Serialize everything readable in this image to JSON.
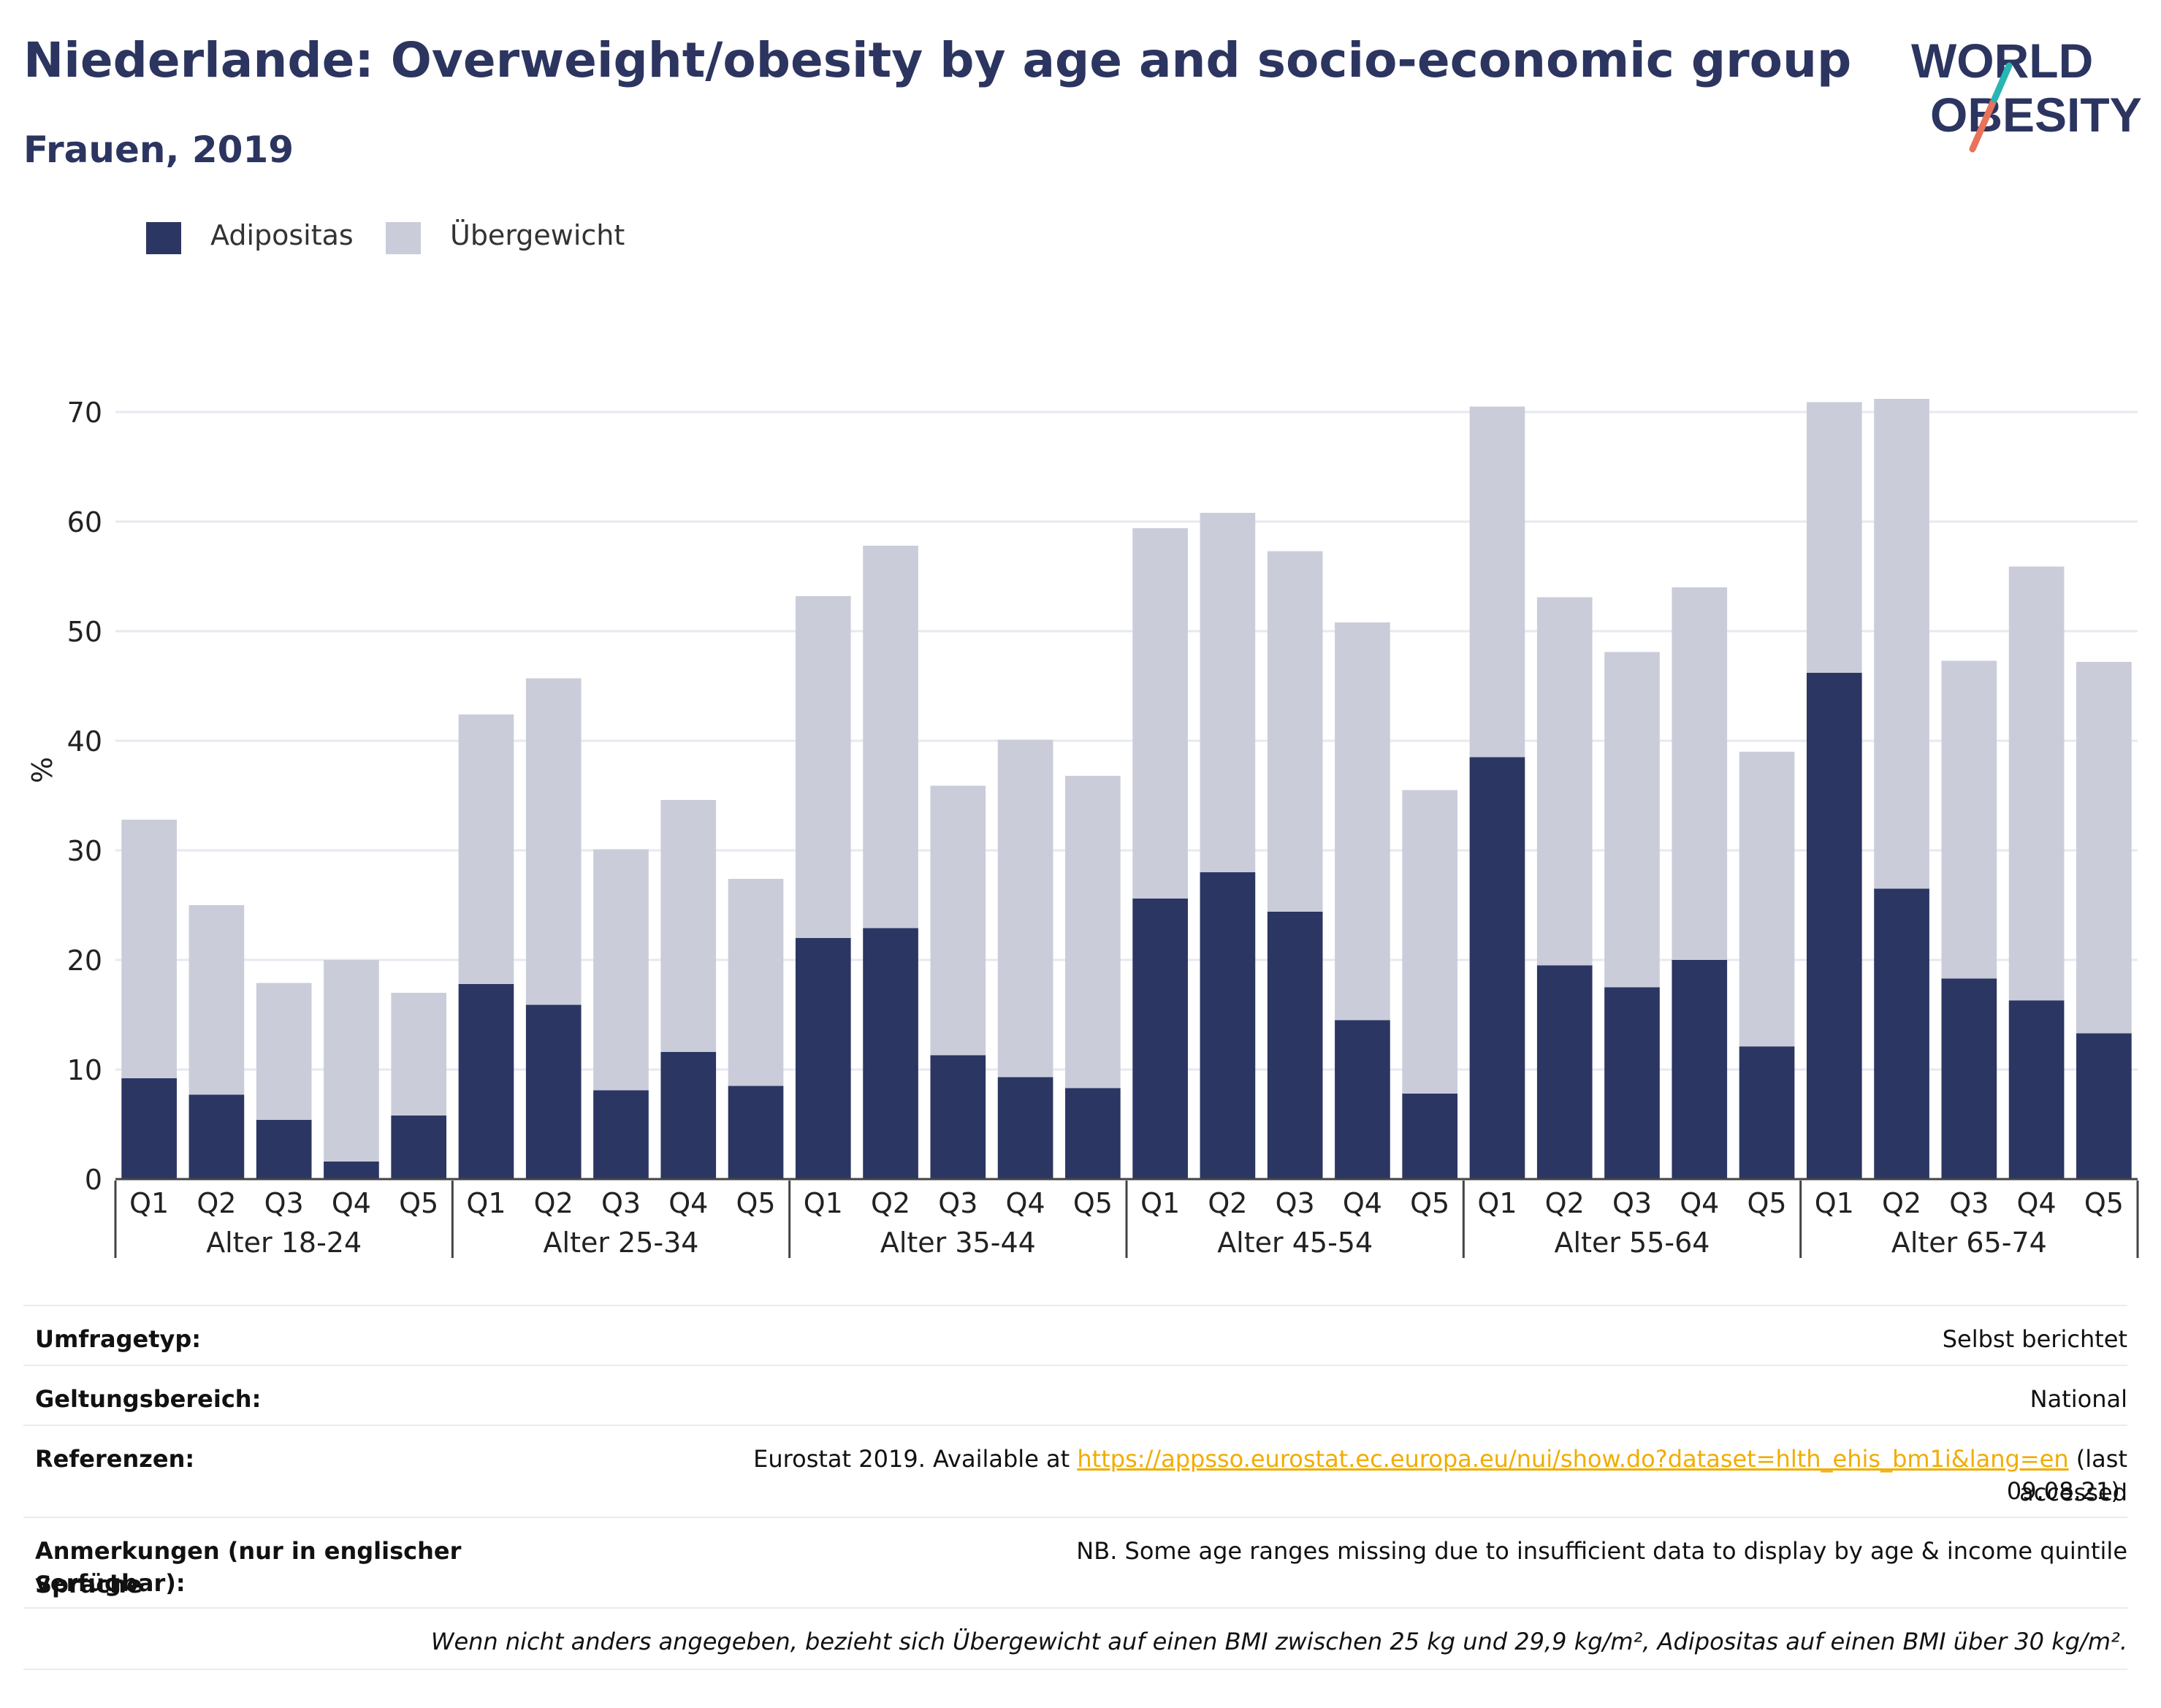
{
  "header": {
    "title": "Niederlande: Overweight/obesity by age and socio-economic group",
    "subtitle": "Frauen, 2019",
    "logo_text_1": "WORLD",
    "logo_text_2": "OBESITY"
  },
  "legend": {
    "obesity": "Adipositas",
    "overweight": "Übergewicht"
  },
  "colors": {
    "obesity": "#2b3663",
    "overweight": "#cacdd9",
    "grid": "#e6e9f0",
    "text": "#2c3560",
    "link": "#f0ad00",
    "logo_teal": "#2ab5b5",
    "logo_coral": "#e8725a"
  },
  "chart_data": {
    "type": "bar",
    "stacked": true,
    "ylabel": "%",
    "ylim": [
      0,
      75
    ],
    "yticks": [
      0,
      10,
      20,
      30,
      40,
      50,
      60,
      70
    ],
    "grid": true,
    "legend_position": "top-left",
    "groups": [
      {
        "label": "Alter 18-24",
        "quintiles": [
          "Q1",
          "Q2",
          "Q3",
          "Q4",
          "Q5"
        ],
        "obesity": [
          9.2,
          7.7,
          5.4,
          1.6,
          5.8
        ],
        "total": [
          32.8,
          25.0,
          17.9,
          20.0,
          17.0
        ]
      },
      {
        "label": "Alter 25-34",
        "quintiles": [
          "Q1",
          "Q2",
          "Q3",
          "Q4",
          "Q5"
        ],
        "obesity": [
          17.8,
          15.9,
          8.1,
          11.6,
          8.5
        ],
        "total": [
          42.4,
          45.7,
          30.1,
          34.6,
          27.4
        ]
      },
      {
        "label": "Alter 35-44",
        "quintiles": [
          "Q1",
          "Q2",
          "Q3",
          "Q4",
          "Q5"
        ],
        "obesity": [
          22.0,
          22.9,
          11.3,
          9.3,
          8.3
        ],
        "total": [
          53.2,
          57.8,
          35.9,
          40.1,
          36.8
        ]
      },
      {
        "label": "Alter 45-54",
        "quintiles": [
          "Q1",
          "Q2",
          "Q3",
          "Q4",
          "Q5"
        ],
        "obesity": [
          25.6,
          28.0,
          24.4,
          14.5,
          7.8
        ],
        "total": [
          59.4,
          60.8,
          57.3,
          50.8,
          35.5
        ]
      },
      {
        "label": "Alter 55-64",
        "quintiles": [
          "Q1",
          "Q2",
          "Q3",
          "Q4",
          "Q5"
        ],
        "obesity": [
          38.5,
          19.5,
          17.5,
          20.0,
          12.1
        ],
        "total": [
          70.5,
          53.1,
          48.1,
          54.0,
          39.0
        ]
      },
      {
        "label": "Alter 65-74",
        "quintiles": [
          "Q1",
          "Q2",
          "Q3",
          "Q4",
          "Q5"
        ],
        "obesity": [
          46.2,
          26.5,
          18.3,
          16.3,
          13.3
        ],
        "total": [
          70.9,
          71.2,
          47.3,
          55.9,
          47.2
        ]
      }
    ]
  },
  "meta": [
    {
      "key": "Umfragetyp:",
      "value": "Selbst berichtet"
    },
    {
      "key": "Geltungsbereich:",
      "value": "National"
    },
    {
      "key": "Referenzen:",
      "value_prefix": "Eurostat 2019. Available at ",
      "link": "https://appsso.eurostat.ec.europa.eu/nui/show.do?dataset=hlth_ehis_bm1i&lang=en",
      "value_suffix": " (last accessed",
      "value_line2": "09.08.21)."
    },
    {
      "key": "Anmerkungen (nur in englischer Sprache",
      "key_line2": "verfügbar):",
      "value": "NB. Some age ranges missing due to insufficient data to display by age & income quintile"
    }
  ],
  "footnote": "Wenn nicht anders angegeben, bezieht sich Übergewicht auf einen BMI zwischen 25 kg und 29,9 kg/m², Adipositas auf einen BMI über 30 kg/m²."
}
